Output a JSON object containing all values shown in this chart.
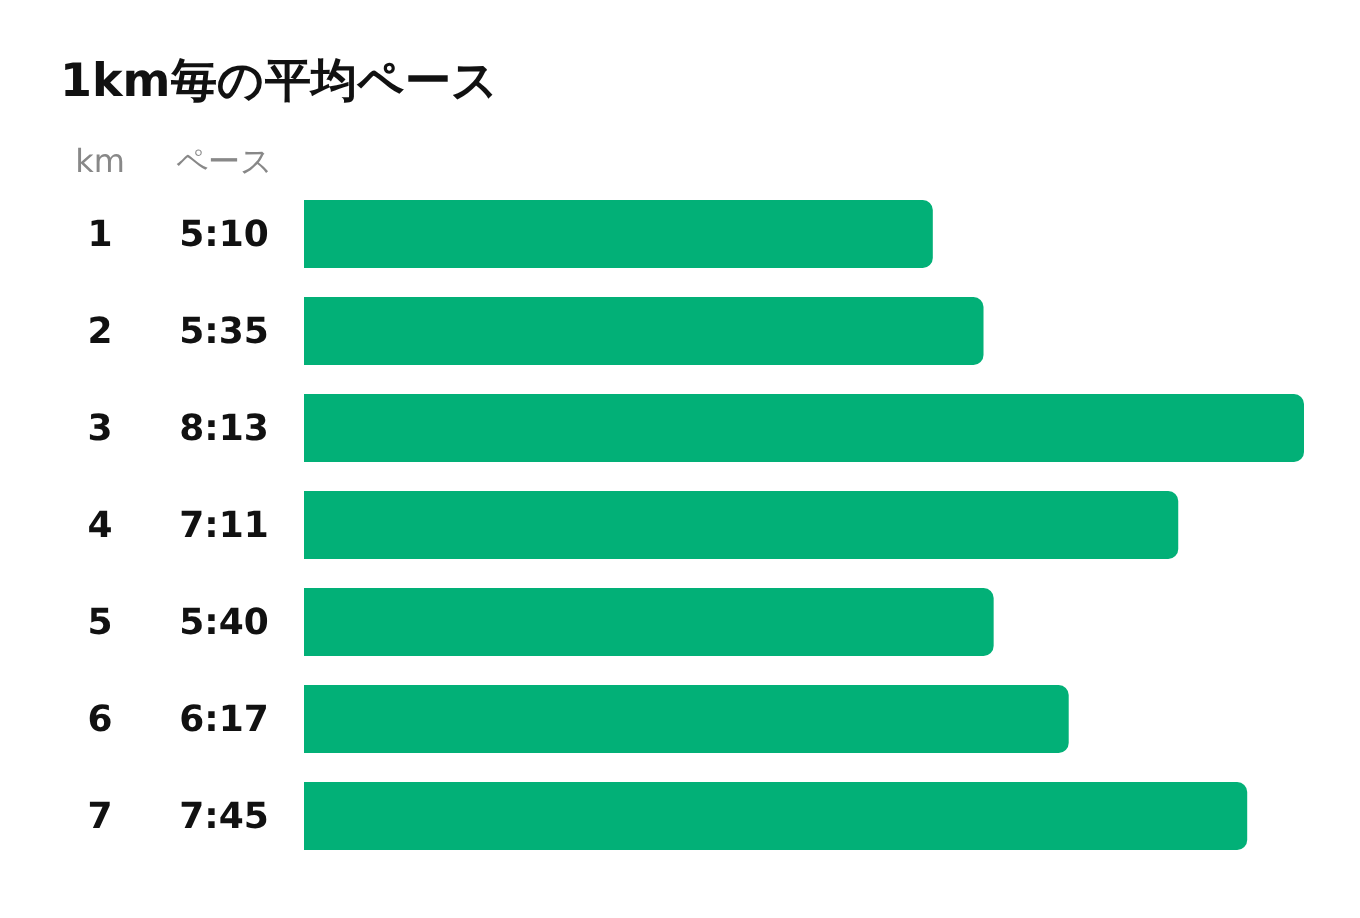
{
  "chart_data": {
    "type": "bar",
    "orientation": "horizontal",
    "title": "1km毎の平均ペース",
    "ylabel": "km",
    "annotations": [
      "ペース"
    ],
    "categories": [
      "1",
      "2",
      "3",
      "4",
      "5",
      "6",
      "7"
    ],
    "values": [
      310,
      335,
      493,
      431,
      340,
      377,
      465
    ],
    "value_labels": [
      "5:10",
      "5:35",
      "8:13",
      "7:11",
      "5:40",
      "6:17",
      "7:45"
    ],
    "color": "#02b077"
  }
}
